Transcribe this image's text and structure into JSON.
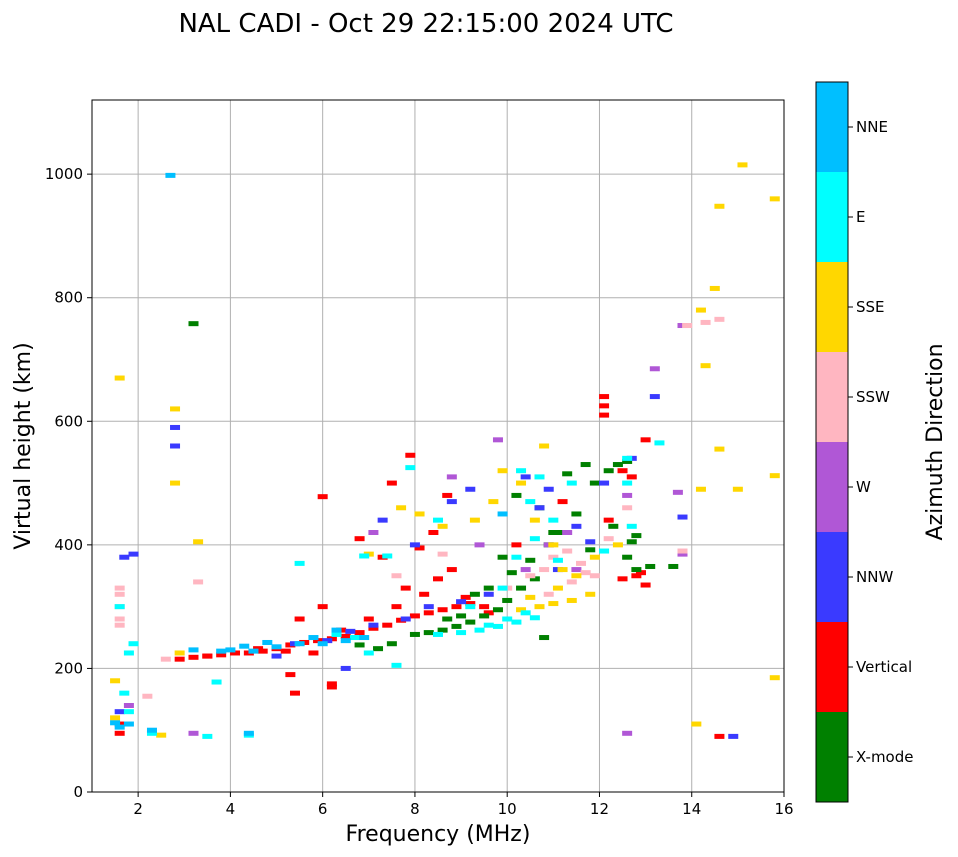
{
  "chart_data": {
    "type": "scatter",
    "title": "NAL CADI - Oct 29 22:15:00 2024 UTC",
    "xlabel": "Frequency (MHz)",
    "ylabel": "Virtual height (km)",
    "xlim": [
      1,
      16
    ],
    "ylim": [
      0,
      1120
    ],
    "x_ticks": [
      "2",
      "4",
      "6",
      "8",
      "10",
      "12",
      "14",
      "16"
    ],
    "y_ticks": [
      "0",
      "200",
      "400",
      "600",
      "800",
      "1000"
    ],
    "grid": true,
    "colorbar": {
      "label": "Azimuth Direction",
      "categories": [
        {
          "name": "X-mode",
          "color": "#008000"
        },
        {
          "name": "Vertical",
          "color": "#ff0000"
        },
        {
          "name": "NNW",
          "color": "#3a3aff"
        },
        {
          "name": "W",
          "color": "#b057d6"
        },
        {
          "name": "SSW",
          "color": "#ffb6c1"
        },
        {
          "name": "SSE",
          "color": "#ffd700"
        },
        {
          "name": "E",
          "color": "#00ffff"
        },
        {
          "name": "NNE",
          "color": "#00bfff"
        }
      ]
    },
    "series": [
      {
        "name": "Vertical",
        "color": "#ff0000",
        "points": [
          [
            2.9,
            215
          ],
          [
            3.2,
            218
          ],
          [
            3.5,
            220
          ],
          [
            3.8,
            222
          ],
          [
            4.1,
            225
          ],
          [
            4.4,
            225
          ],
          [
            4.7,
            228
          ],
          [
            5.0,
            232
          ],
          [
            5.3,
            238
          ],
          [
            5.6,
            242
          ],
          [
            5.9,
            245
          ],
          [
            6.2,
            248
          ],
          [
            6.5,
            252
          ],
          [
            6.8,
            258
          ],
          [
            7.1,
            265
          ],
          [
            7.4,
            270
          ],
          [
            7.7,
            278
          ],
          [
            8.0,
            285
          ],
          [
            8.3,
            290
          ],
          [
            8.6,
            295
          ],
          [
            8.9,
            300
          ],
          [
            9.2,
            305
          ],
          [
            4.6,
            232
          ],
          [
            5.2,
            228
          ],
          [
            5.8,
            225
          ],
          [
            6.4,
            262
          ],
          [
            7.0,
            280
          ],
          [
            7.6,
            300
          ],
          [
            8.2,
            320
          ],
          [
            8.8,
            360
          ],
          [
            8.1,
            395
          ],
          [
            8.4,
            420
          ],
          [
            8.7,
            480
          ],
          [
            7.5,
            500
          ],
          [
            6.0,
            478
          ],
          [
            7.9,
            545
          ],
          [
            6.8,
            410
          ],
          [
            9.5,
            300
          ],
          [
            9.1,
            315
          ],
          [
            9.6,
            290
          ],
          [
            12.1,
            610
          ],
          [
            12.1,
            625
          ],
          [
            12.1,
            640
          ],
          [
            12.2,
            440
          ],
          [
            12.5,
            520
          ],
          [
            12.7,
            510
          ],
          [
            13.0,
            570
          ],
          [
            13.0,
            335
          ],
          [
            12.8,
            350
          ],
          [
            12.5,
            345
          ],
          [
            14.6,
            90
          ],
          [
            6.2,
            175
          ],
          [
            6.2,
            170
          ],
          [
            5.3,
            190
          ],
          [
            5.4,
            160
          ],
          [
            1.6,
            110
          ],
          [
            1.6,
            95
          ],
          [
            3.5,
            220
          ],
          [
            6.0,
            300
          ],
          [
            5.5,
            280
          ],
          [
            7.3,
            380
          ],
          [
            8.5,
            345
          ],
          [
            7.8,
            330
          ],
          [
            10.2,
            400
          ],
          [
            11.2,
            470
          ],
          [
            12.9,
            355
          ]
        ]
      },
      {
        "name": "X-mode",
        "color": "#008000",
        "points": [
          [
            8.0,
            255
          ],
          [
            8.3,
            258
          ],
          [
            8.6,
            262
          ],
          [
            8.9,
            268
          ],
          [
            9.2,
            275
          ],
          [
            9.5,
            285
          ],
          [
            9.8,
            295
          ],
          [
            10.0,
            310
          ],
          [
            10.3,
            330
          ],
          [
            10.6,
            345
          ],
          [
            9.3,
            320
          ],
          [
            9.6,
            330
          ],
          [
            9.0,
            285
          ],
          [
            8.7,
            280
          ],
          [
            10.1,
            355
          ],
          [
            10.5,
            375
          ],
          [
            10.9,
            400
          ],
          [
            11.2,
            420
          ],
          [
            11.5,
            450
          ],
          [
            11.9,
            500
          ],
          [
            12.2,
            520
          ],
          [
            12.4,
            530
          ],
          [
            12.6,
            535
          ],
          [
            11.3,
            515
          ],
          [
            11.7,
            530
          ],
          [
            12.6,
            380
          ],
          [
            12.8,
            360
          ],
          [
            13.1,
            365
          ],
          [
            13.6,
            365
          ],
          [
            12.3,
            430
          ],
          [
            12.8,
            415
          ],
          [
            6.8,
            238
          ],
          [
            7.2,
            232
          ],
          [
            7.5,
            240
          ],
          [
            10.2,
            480
          ],
          [
            10.7,
            460
          ],
          [
            11.0,
            420
          ],
          [
            11.8,
            392
          ],
          [
            3.2,
            758
          ],
          [
            12.7,
            405
          ],
          [
            10.8,
            250
          ],
          [
            9.9,
            380
          ]
        ]
      },
      {
        "name": "NNW",
        "color": "#3a3aff",
        "points": [
          [
            5.4,
            240
          ],
          [
            6.1,
            245
          ],
          [
            6.6,
            260
          ],
          [
            7.1,
            270
          ],
          [
            7.8,
            280
          ],
          [
            8.3,
            300
          ],
          [
            9.0,
            308
          ],
          [
            9.6,
            320
          ],
          [
            8.8,
            470
          ],
          [
            9.2,
            490
          ],
          [
            10.4,
            510
          ],
          [
            10.9,
            490
          ],
          [
            11.5,
            430
          ],
          [
            11.8,
            405
          ],
          [
            12.1,
            500
          ],
          [
            12.7,
            540
          ],
          [
            13.2,
            640
          ],
          [
            13.8,
            445
          ],
          [
            14.9,
            90
          ],
          [
            8.0,
            400
          ],
          [
            7.3,
            440
          ],
          [
            1.9,
            385
          ],
          [
            1.7,
            380
          ],
          [
            1.6,
            130
          ],
          [
            2.8,
            560
          ],
          [
            2.8,
            590
          ],
          [
            6.5,
            200
          ],
          [
            5.0,
            220
          ],
          [
            10.7,
            460
          ],
          [
            11.1,
            360
          ]
        ]
      },
      {
        "name": "W",
        "color": "#b057d6",
        "points": [
          [
            9.8,
            570
          ],
          [
            8.8,
            510
          ],
          [
            11.3,
            420
          ],
          [
            12.6,
            480
          ],
          [
            13.2,
            685
          ],
          [
            13.7,
            485
          ],
          [
            13.8,
            385
          ],
          [
            12.6,
            95
          ],
          [
            3.2,
            95
          ],
          [
            1.8,
            140
          ],
          [
            10.9,
            400
          ],
          [
            11.5,
            360
          ],
          [
            7.1,
            420
          ],
          [
            10.4,
            360
          ],
          [
            9.4,
            400
          ],
          [
            13.8,
            755
          ]
        ]
      },
      {
        "name": "SSW",
        "color": "#ffb6c1",
        "points": [
          [
            10.5,
            350
          ],
          [
            10.8,
            360
          ],
          [
            11.0,
            380
          ],
          [
            11.3,
            390
          ],
          [
            11.6,
            370
          ],
          [
            11.4,
            340
          ],
          [
            10.9,
            320
          ],
          [
            11.7,
            355
          ],
          [
            12.2,
            410
          ],
          [
            12.6,
            460
          ],
          [
            13.8,
            390
          ],
          [
            13.9,
            755
          ],
          [
            14.3,
            760
          ],
          [
            14.6,
            765
          ],
          [
            1.6,
            330
          ],
          [
            1.6,
            320
          ],
          [
            1.6,
            300
          ],
          [
            1.6,
            270
          ],
          [
            1.6,
            280
          ],
          [
            2.2,
            155
          ],
          [
            3.3,
            340
          ],
          [
            2.6,
            215
          ],
          [
            10.0,
            330
          ],
          [
            8.6,
            385
          ],
          [
            7.6,
            350
          ],
          [
            11.9,
            350
          ]
        ]
      },
      {
        "name": "SSE",
        "color": "#ffd700",
        "points": [
          [
            10.3,
            295
          ],
          [
            10.7,
            300
          ],
          [
            11.0,
            305
          ],
          [
            11.4,
            310
          ],
          [
            11.8,
            320
          ],
          [
            10.5,
            315
          ],
          [
            11.1,
            330
          ],
          [
            11.5,
            350
          ],
          [
            10.8,
            560
          ],
          [
            10.3,
            500
          ],
          [
            9.7,
            470
          ],
          [
            9.3,
            440
          ],
          [
            8.6,
            430
          ],
          [
            8.1,
            450
          ],
          [
            7.7,
            460
          ],
          [
            14.2,
            490
          ],
          [
            15.0,
            490
          ],
          [
            14.6,
            555
          ],
          [
            14.3,
            690
          ],
          [
            14.2,
            780
          ],
          [
            14.5,
            815
          ],
          [
            14.6,
            948
          ],
          [
            15.1,
            1015
          ],
          [
            15.8,
            960
          ],
          [
            15.8,
            512
          ],
          [
            15.8,
            185
          ],
          [
            14.1,
            110
          ],
          [
            1.6,
            670
          ],
          [
            2.8,
            620
          ],
          [
            2.8,
            500
          ],
          [
            3.3,
            405
          ],
          [
            2.9,
            225
          ],
          [
            7.0,
            385
          ],
          [
            1.5,
            180
          ],
          [
            1.5,
            120
          ],
          [
            2.5,
            92
          ],
          [
            9.9,
            520
          ],
          [
            11.0,
            400
          ],
          [
            12.4,
            400
          ],
          [
            10.6,
            440
          ],
          [
            11.9,
            380
          ],
          [
            11.2,
            360
          ]
        ]
      },
      {
        "name": "E",
        "color": "#00ffff",
        "points": [
          [
            8.5,
            255
          ],
          [
            9.0,
            258
          ],
          [
            9.4,
            262
          ],
          [
            9.8,
            268
          ],
          [
            10.2,
            275
          ],
          [
            10.6,
            282
          ],
          [
            9.6,
            270
          ],
          [
            10.0,
            280
          ],
          [
            10.4,
            290
          ],
          [
            9.2,
            300
          ],
          [
            9.9,
            330
          ],
          [
            10.6,
            410
          ],
          [
            11.0,
            440
          ],
          [
            10.5,
            470
          ],
          [
            10.3,
            520
          ],
          [
            10.7,
            510
          ],
          [
            11.4,
            500
          ],
          [
            12.6,
            500
          ],
          [
            12.7,
            430
          ],
          [
            13.3,
            565
          ],
          [
            12.6,
            540
          ],
          [
            12.1,
            390
          ],
          [
            1.9,
            240
          ],
          [
            1.8,
            225
          ],
          [
            1.6,
            300
          ],
          [
            1.7,
            160
          ],
          [
            1.8,
            130
          ],
          [
            2.3,
            95
          ],
          [
            3.5,
            90
          ],
          [
            4.4,
            92
          ],
          [
            3.7,
            178
          ],
          [
            7.6,
            205
          ],
          [
            7.9,
            525
          ],
          [
            8.5,
            440
          ],
          [
            6.9,
            382
          ],
          [
            7.4,
            382
          ],
          [
            5.5,
            370
          ],
          [
            6.3,
            255
          ],
          [
            6.7,
            250
          ],
          [
            7.0,
            225
          ],
          [
            11.1,
            375
          ],
          [
            10.2,
            380
          ]
        ]
      },
      {
        "name": "NNE",
        "color": "#00bfff",
        "points": [
          [
            4.0,
            230
          ],
          [
            4.5,
            228
          ],
          [
            5.0,
            235
          ],
          [
            5.5,
            240
          ],
          [
            6.0,
            240
          ],
          [
            6.5,
            245
          ],
          [
            4.3,
            236
          ],
          [
            4.8,
            242
          ],
          [
            5.8,
            250
          ],
          [
            6.3,
            262
          ],
          [
            3.8,
            228
          ],
          [
            2.7,
            998
          ],
          [
            2.3,
            100
          ],
          [
            1.5,
            112
          ],
          [
            1.6,
            105
          ],
          [
            4.4,
            95
          ],
          [
            1.8,
            110
          ],
          [
            3.2,
            230
          ],
          [
            6.9,
            250
          ],
          [
            9.9,
            450
          ]
        ]
      }
    ]
  }
}
